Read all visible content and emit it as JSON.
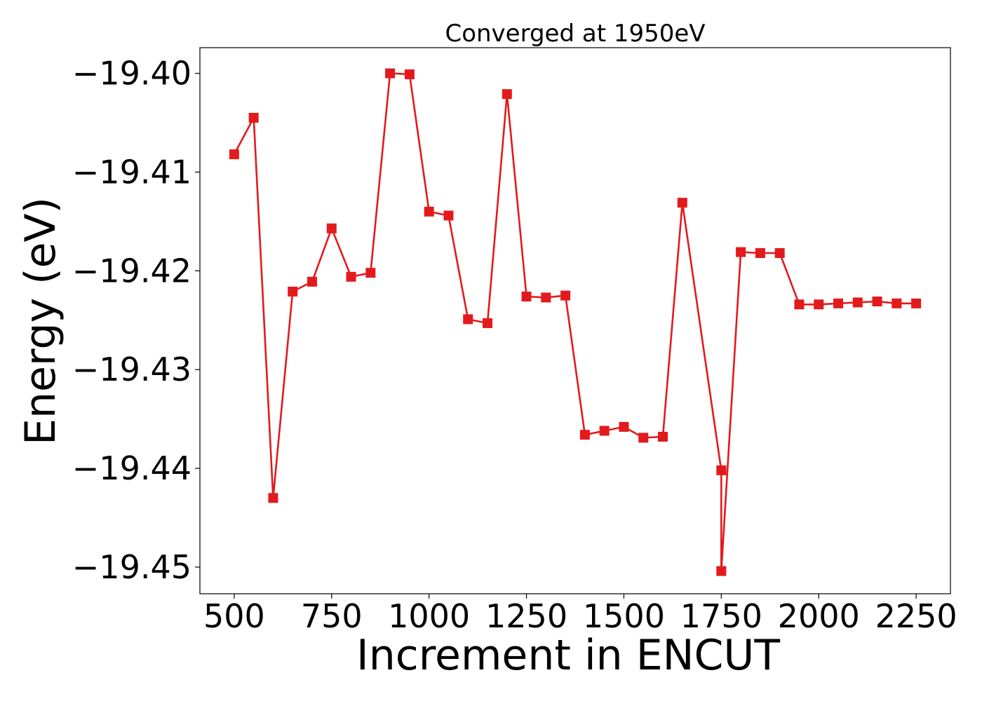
{
  "chart_data": {
    "type": "line",
    "title": "Converged at 1950eV",
    "xlabel": "Increment in ENCUT",
    "ylabel": "Energy (eV)",
    "xlim": [
      412,
      2338
    ],
    "ylim": [
      -19.4527,
      -19.3974
    ],
    "x_ticks": [
      500,
      750,
      1000,
      1250,
      1500,
      1750,
      2000,
      2250
    ],
    "x_tick_labels": [
      "500",
      "750",
      "1000",
      "1250",
      "1500",
      "1750",
      "2000",
      "2250"
    ],
    "y_ticks": [
      -19.4,
      -19.41,
      -19.42,
      -19.43,
      -19.44,
      -19.45
    ],
    "y_tick_labels": [
      "−19.40",
      "−19.41",
      "−19.42",
      "−19.43",
      "−19.44",
      "−19.45"
    ],
    "grid": false,
    "series": [
      {
        "color": "#e31a1c",
        "marker": "square",
        "x": [
          500,
          550,
          600,
          650,
          700,
          750,
          800,
          850,
          900,
          950,
          1000,
          1050,
          1100,
          1150,
          1200,
          1250,
          1300,
          1350,
          1400,
          1450,
          1500,
          1550,
          1600,
          1650,
          1750,
          1750,
          1800,
          1850,
          1900,
          1950,
          2000,
          2050,
          2100,
          2150,
          2200,
          2250
        ],
        "y": [
          -19.4082,
          -19.4045,
          -19.443,
          -19.4221,
          -19.4211,
          -19.4157,
          -19.4206,
          -19.4202,
          -19.4,
          -19.4001,
          -19.414,
          -19.4144,
          -19.4249,
          -19.4253,
          -19.4021,
          -19.4226,
          -19.4227,
          -19.4225,
          -19.4366,
          -19.4362,
          -19.4358,
          -19.4369,
          -19.4368,
          -19.4131,
          -19.4402,
          -19.4504,
          -19.4181,
          -19.4182,
          -19.4182,
          -19.4234,
          -19.4234,
          -19.4233,
          -19.4232,
          -19.4231,
          -19.4233,
          -19.4233
        ]
      }
    ]
  }
}
